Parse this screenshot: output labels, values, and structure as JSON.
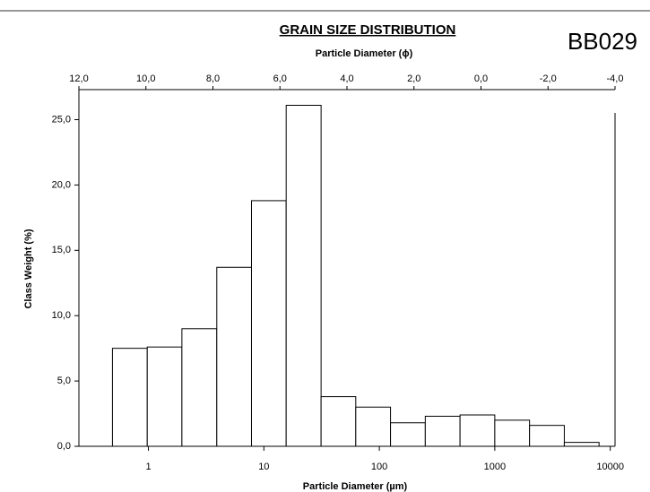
{
  "chart_data": {
    "type": "histogram",
    "title": "GRAIN SIZE DISTRIBUTION",
    "sample_label": "BB029",
    "xlabel": "Particle Diameter (µm)",
    "ylabel": "Class Weight (%)",
    "x2label": "Particle Diameter (ϕ)",
    "bins": [
      0.488,
      0.977,
      1.95,
      3.91,
      7.81,
      15.6,
      31.3,
      62.5,
      125,
      250,
      500,
      1000,
      2000,
      4000,
      8000
    ],
    "values": [
      7.5,
      7.6,
      9.0,
      13.7,
      18.8,
      26.1,
      3.8,
      3.0,
      1.8,
      2.3,
      2.4,
      2.0,
      1.6,
      0.3
    ],
    "color": "#ffffff",
    "edgecolor": "#000000",
    "xscale": "log",
    "xlim": [
      0.25,
      11000
    ],
    "xticks": [
      1,
      10,
      100,
      1000,
      10000
    ],
    "ylim": [
      0,
      27.3
    ],
    "yticks": [
      {
        "value": 0,
        "label": "0,0"
      },
      {
        "value": 5,
        "label": "5,0"
      },
      {
        "value": 10,
        "label": "10,0"
      },
      {
        "value": 15,
        "label": "15,0"
      },
      {
        "value": 20,
        "label": "20,0"
      },
      {
        "value": 25,
        "label": "25,0"
      }
    ],
    "x2lim": [
      12,
      -4
    ],
    "x2ticks": [
      {
        "value": 12,
        "label": "12,0"
      },
      {
        "value": 10,
        "label": "10,0"
      },
      {
        "value": 8,
        "label": "8,0"
      },
      {
        "value": 6,
        "label": "6,0"
      },
      {
        "value": 4,
        "label": "4,0"
      },
      {
        "value": 2,
        "label": "2,0"
      },
      {
        "value": 0,
        "label": "0,0"
      },
      {
        "value": -2,
        "label": "-2,0"
      },
      {
        "value": -4,
        "label": "-4,0"
      }
    ],
    "grid": false
  }
}
